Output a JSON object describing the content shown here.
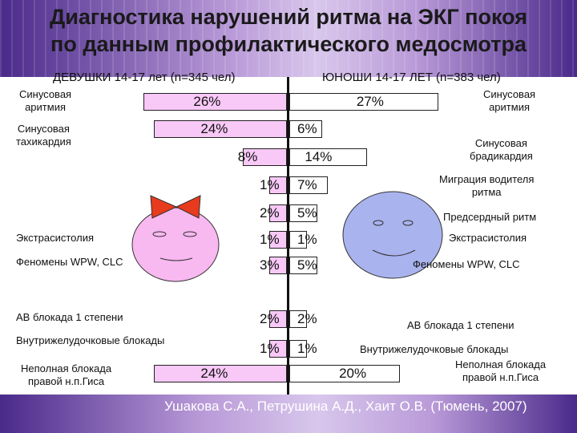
{
  "title_lines": [
    "Диагностика нарушений ритма на ЭКГ покоя",
    "по данным профилактического медосмотра"
  ],
  "footer": "Ушакова С.А., Петрушина А.Д., Хаит О.В. (Тюмень, 2007)",
  "colors": {
    "girls_bar": "#f8c8f6",
    "boys_bar": "#ffffff",
    "bow": "#e83a1c",
    "girl_face": "#f8b8f0",
    "boy_face": "#a9b3ee"
  },
  "chart_data": {
    "type": "bar",
    "orientation": "horizontal-diverging",
    "series": [
      {
        "name": "ДЕВУШКИ 14-17 лет (n=345 чел)",
        "side": "left",
        "labels": [
          "Синусовая аритмия",
          "Синусовая тахикардия",
          "",
          "",
          "",
          "Экстрасистолия",
          "Феномены WPW, CLC",
          "АВ блокада 1 степени",
          "Внутрижелудочковые блокады",
          "Неполная блокада правой н.п.Гиса"
        ],
        "values": [
          26,
          24,
          8,
          1,
          2,
          1,
          3,
          2,
          1,
          24
        ],
        "value_labels": [
          "26%",
          "24%",
          "8%",
          "1%",
          "2%",
          "1%",
          "3%",
          "2%",
          "1%",
          "24%"
        ]
      },
      {
        "name": "ЮНОШИ 14-17 ЛЕТ (n=383 чел)",
        "side": "right",
        "labels": [
          "Синусовая аритмия",
          "",
          "Синусовая брадикардия",
          "Миграция водителя ритма",
          "Предсердный ритм",
          "Экстрасистолия",
          "Феномены WPW, CLC",
          "АВ блокада 1 степени",
          "Внутрижелудочковые блокады",
          "Неполная блокада правой н.п.Гиса"
        ],
        "values": [
          27,
          6,
          14,
          7,
          5,
          1,
          5,
          2,
          1,
          20
        ],
        "value_labels": [
          "27%",
          "6%",
          "14%",
          "7%",
          "5%",
          "1%",
          "5%",
          "2%",
          "1%",
          "20%"
        ]
      }
    ],
    "left_labels": {
      "sinus_arr": [
        "Синусовая",
        "аритмия"
      ],
      "sinus_tach": [
        "Синусовая",
        "тахикардия"
      ],
      "extra": "Экстрасистолия",
      "wpw": "Феномены WPW, CLC",
      "av": "АВ блокада 1 степени",
      "ivb": "Внутрижелудочковые блокады",
      "rbbb": [
        "Неполная блокада",
        "правой н.п.Гиса"
      ]
    },
    "right_labels": {
      "sinus_arr": [
        "Синусовая",
        "аритмия"
      ],
      "sinus_brady": [
        "Синусовая",
        "брадикардия"
      ],
      "migration": [
        "Миграция водителя",
        "ритма"
      ],
      "atrial": "Предсердный ритм",
      "extra": "Экстрасистолия",
      "wpw": "Феномены WPW, CLC",
      "av": "АВ блокада 1 степени",
      "ivb": "Внутрижелудочковые блокады",
      "rbbb": [
        "Неполная блокада",
        "правой н.п.Гиса"
      ]
    }
  }
}
